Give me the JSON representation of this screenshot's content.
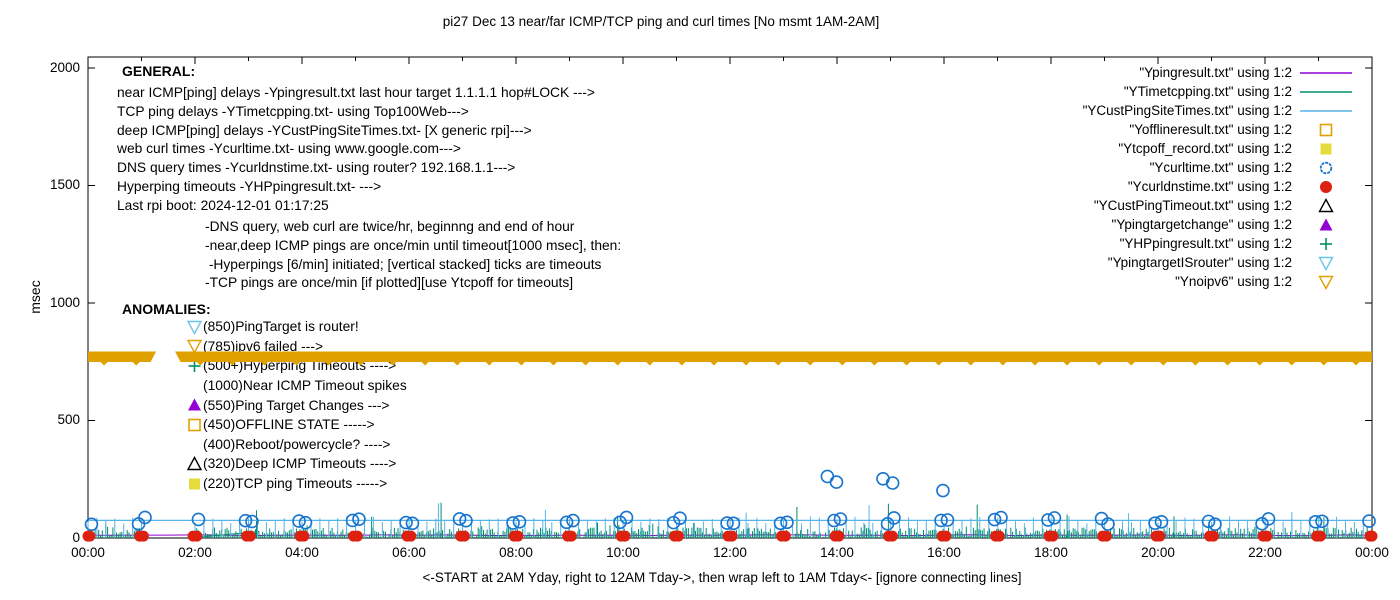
{
  "title": "pi27 Dec 13  near/far ICMP/TCP ping and curl times [No msmt 1AM-2AM]",
  "y_axis": {
    "label": "msec",
    "ticks": [
      "2000",
      "1500",
      "1000",
      "500",
      "0"
    ]
  },
  "x_axis": {
    "labels": [
      "00:00",
      "02:00",
      "04:00",
      "06:00",
      "08:00",
      "10:00",
      "12:00",
      "14:00",
      "16:00",
      "18:00",
      "20:00",
      "22:00",
      "00:00"
    ],
    "footer": "<-START at 2AM Yday, right to 12AM Tday->, then wrap left to 1AM Tday<- [ignore connecting lines]"
  },
  "general": {
    "heading": "GENERAL:",
    "lines": [
      "near ICMP[ping] delays -Ypingresult.txt last hour target 1.1.1.1 hop#LOCK --->",
      "TCP ping delays -YTimetcpping.txt- using Top100Web--->",
      "deep ICMP[ping] delays -YCustPingSiteTimes.txt- [X generic rpi]--->",
      "web curl times -Ycurltime.txt- using www.google.com--->",
      "DNS query times -Ycurldnstime.txt- using router? 192.168.1.1--->",
      "Hyperping timeouts -YHPpingresult.txt- --->",
      "Last rpi boot: 2024-12-01 01:17:25"
    ],
    "notes": [
      "-DNS query, web curl are twice/hr, beginnng and end of hour",
      "-near,deep ICMP pings are once/min until timeout[1000 msec], then:",
      " -Hyperpings [6/min] initiated; [vertical stacked] ticks are timeouts",
      "-TCP pings are once/min [if plotted][use Ytcpoff for timeouts]"
    ]
  },
  "anomalies": {
    "heading": "ANOMALIES:",
    "items": [
      {
        "marker": "tri-down-open",
        "color": "#6EC3E8",
        "text": "(850)PingTarget is router!"
      },
      {
        "marker": "tri-down-open",
        "color": "#E0A000",
        "text": "(785)ipv6 failed --->"
      },
      {
        "marker": "plus",
        "color": "#008F68",
        "text": "(500+)Hyperping Timeouts ---->"
      },
      {
        "marker": "none",
        "color": "#000000",
        "text": "(1000)Near ICMP Timeout spikes"
      },
      {
        "marker": "tri-up-filled",
        "color": "#9400D3",
        "text": "(550)Ping Target Changes --->"
      },
      {
        "marker": "square-open",
        "color": "#E0A000",
        "text": "(450)OFFLINE STATE ----->"
      },
      {
        "marker": "none",
        "color": "#000000",
        "text": "(400)Reboot/powercycle? ---->"
      },
      {
        "marker": "tri-up-open",
        "color": "#000000",
        "text": "(320)Deep ICMP Timeouts ---->"
      },
      {
        "marker": "square-filled",
        "color": "#E3DC3C",
        "text": "(220)TCP ping Timeouts ----->"
      }
    ]
  },
  "legend": {
    "items": [
      {
        "label": "\"Ypingresult.txt\" using 1:2",
        "marker": "line",
        "color": "#9400D3"
      },
      {
        "label": "\"YTimetcpping.txt\" using 1:2",
        "marker": "line",
        "color": "#008F68"
      },
      {
        "label": "\"YCustPingSiteTimes.txt\" using 1:2",
        "marker": "line",
        "color": "#56B4E9"
      },
      {
        "label": "\"Yofflineresult.txt\" using 1:2",
        "marker": "square-open",
        "color": "#E0A000"
      },
      {
        "label": "\"Ytcpoff_record.txt\" using 1:2",
        "marker": "square-filled",
        "color": "#E3DC3C"
      },
      {
        "label": "\"Ycurltime.txt\" using 1:2",
        "marker": "circle-open",
        "color": "#1874CD"
      },
      {
        "label": "\"Ycurldnstime.txt\" using 1:2",
        "marker": "circle-filled",
        "color": "#DE2010"
      },
      {
        "label": "\"YCustPingTimeout.txt\" using 1:2",
        "marker": "tri-up-open",
        "color": "#000000"
      },
      {
        "label": "\"Ypingtargetchange\" using 1:2",
        "marker": "tri-up-filled",
        "color": "#9400D3"
      },
      {
        "label": "\"YHPpingresult.txt\" using 1:2",
        "marker": "plus",
        "color": "#008F68"
      },
      {
        "label": "\"YpingtargetISrouter\" using 1:2",
        "marker": "tri-down-open",
        "color": "#6EC3E8"
      },
      {
        "label": "\"Ynoipv6\" using 1:2",
        "marker": "tri-down-open",
        "color": "#E0A000"
      }
    ]
  },
  "chart_data": {
    "type": "line",
    "x_range_hours": [
      0,
      24
    ],
    "x_tick_every_hours": 2,
    "x_minor_tick_hours": 1,
    "ylabel": "msec",
    "ylim": [
      0,
      2000
    ],
    "y_ticks": [
      0,
      500,
      1000,
      1500,
      2000
    ],
    "no_measurement_gap_hours": [
      1.08,
      1.97
    ],
    "series": [
      {
        "name": "Ypingresult.txt",
        "style": "line",
        "color": "#9400D3",
        "description": "near ICMP ping, ~10 msec flat baseline",
        "baseline_msec": 10,
        "jitter_msec": 4,
        "step_hours": 0.5
      },
      {
        "name": "YTimetcpping.txt",
        "style": "grass",
        "color": "#008F68",
        "description": "TCP ping once/min, 3-45 msec noise with occasional spikes",
        "min_msec": 3,
        "max_msec": 45,
        "step_hours": 0.0333,
        "spikes": [
          {
            "t": 3.15,
            "v": 118
          },
          {
            "t": 5.3,
            "v": 90
          },
          {
            "t": 6.6,
            "v": 150
          },
          {
            "t": 9.9,
            "v": 95
          },
          {
            "t": 13.25,
            "v": 132
          },
          {
            "t": 14.96,
            "v": 146
          },
          {
            "t": 16.62,
            "v": 142
          },
          {
            "t": 18.3,
            "v": 100
          },
          {
            "t": 20.3,
            "v": 92
          },
          {
            "t": 23.1,
            "v": 88
          }
        ],
        "connect_segment": {
          "t1": 2.1,
          "v1": 4,
          "t2": 3.2,
          "v2": 28
        }
      },
      {
        "name": "YCustPingSiteTimes.txt",
        "style": "comb",
        "color": "#56B4E9",
        "description": "deep ICMP ping, ~75 msec level line with tick comb every 10 min",
        "level_msec": 75,
        "tick_every_hours": 0.1667,
        "top_min_msec": 62,
        "top_max_msec": 92,
        "spikes": [
          {
            "t": 6.55,
            "v": 148
          },
          {
            "t": 8.55,
            "v": 120
          },
          {
            "t": 12.3,
            "v": 108
          },
          {
            "t": 14.6,
            "v": 140
          },
          {
            "t": 19.45,
            "v": 105
          },
          {
            "t": 22.5,
            "v": 110
          }
        ]
      },
      {
        "name": "Ycurltime.txt",
        "style": "circles-open",
        "color": "#1874CD",
        "description": "web curl twice/hr (pairs straddling each hour), 58-88 msec",
        "pair_offsets_hours": [
          -0.055,
          0.065
        ],
        "v_min_msec": 58,
        "v_max_msec": 88,
        "outliers": [
          {
            "t": 13.82,
            "v": 262
          },
          {
            "t": 13.99,
            "v": 238
          },
          {
            "t": 14.86,
            "v": 252
          },
          {
            "t": 15.04,
            "v": 234
          },
          {
            "t": 15.98,
            "v": 202
          }
        ]
      },
      {
        "name": "Ycurldnstime.txt",
        "style": "dots-filled",
        "color": "#DE2010",
        "description": "DNS query twice/hr, large red dots merged at each hour near 0-10 msec",
        "hourly_value_msec": 8,
        "pair_offsets_hours": [
          -0.035,
          0.035
        ]
      },
      {
        "name": "Ynoipv6",
        "style": "band-triangles",
        "color": "#DFA000",
        "description": "ipv6-failed markers plotted at ~780 msec forming a solid band all day except the 1AM-2AM gap",
        "value_msec": 780,
        "segments_hours": [
          [
            0,
            1.17
          ],
          [
            1.73,
            24
          ]
        ]
      }
    ]
  }
}
